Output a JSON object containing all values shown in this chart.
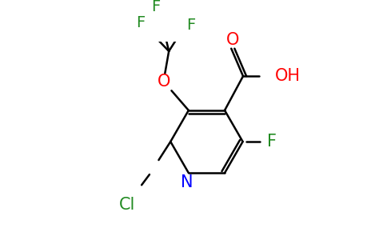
{
  "background_color": "#ffffff",
  "atom_colors": {
    "O": "#ff0000",
    "F": "#228B22",
    "Cl": "#228B22",
    "N": "#0000ff",
    "C": "#000000"
  },
  "figsize": [
    4.84,
    3.0
  ],
  "dpi": 100,
  "lw": 1.8,
  "fs": 15
}
